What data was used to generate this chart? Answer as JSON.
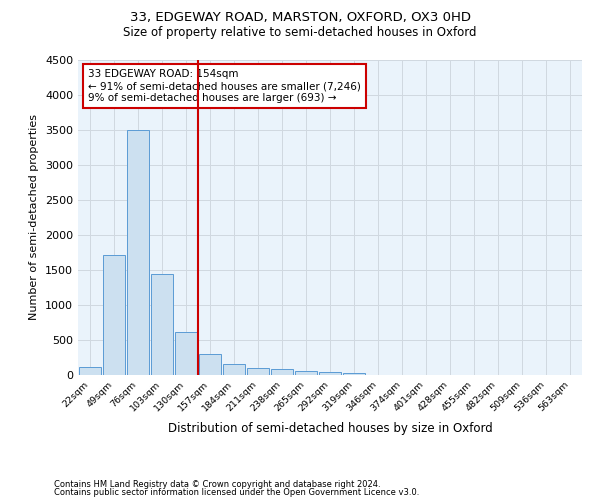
{
  "title_line1": "33, EDGEWAY ROAD, MARSTON, OXFORD, OX3 0HD",
  "title_line2": "Size of property relative to semi-detached houses in Oxford",
  "xlabel": "Distribution of semi-detached houses by size in Oxford",
  "ylabel": "Number of semi-detached properties",
  "footnote1": "Contains HM Land Registry data © Crown copyright and database right 2024.",
  "footnote2": "Contains public sector information licensed under the Open Government Licence v3.0.",
  "bin_labels": [
    "22sqm",
    "49sqm",
    "76sqm",
    "103sqm",
    "130sqm",
    "157sqm",
    "184sqm",
    "211sqm",
    "238sqm",
    "265sqm",
    "292sqm",
    "319sqm",
    "346sqm",
    "374sqm",
    "401sqm",
    "428sqm",
    "455sqm",
    "482sqm",
    "509sqm",
    "536sqm",
    "563sqm"
  ],
  "bar_values": [
    120,
    1720,
    3500,
    1440,
    610,
    300,
    155,
    100,
    80,
    55,
    40,
    30,
    0,
    0,
    0,
    0,
    0,
    0,
    0,
    0,
    0
  ],
  "bar_color": "#cce0f0",
  "bar_edge_color": "#5b9bd5",
  "grid_color": "#d0d8e0",
  "background_color": "#eaf3fb",
  "property_label": "33 EDGEWAY ROAD: 154sqm",
  "pct_smaller": 91,
  "n_smaller": 7246,
  "pct_larger": 9,
  "n_larger": 693,
  "vline_color": "#cc0000",
  "annotation_box_color": "#cc0000",
  "ylim": [
    0,
    4500
  ],
  "yticks": [
    0,
    500,
    1000,
    1500,
    2000,
    2500,
    3000,
    3500,
    4000,
    4500
  ],
  "vline_x": 4.5
}
